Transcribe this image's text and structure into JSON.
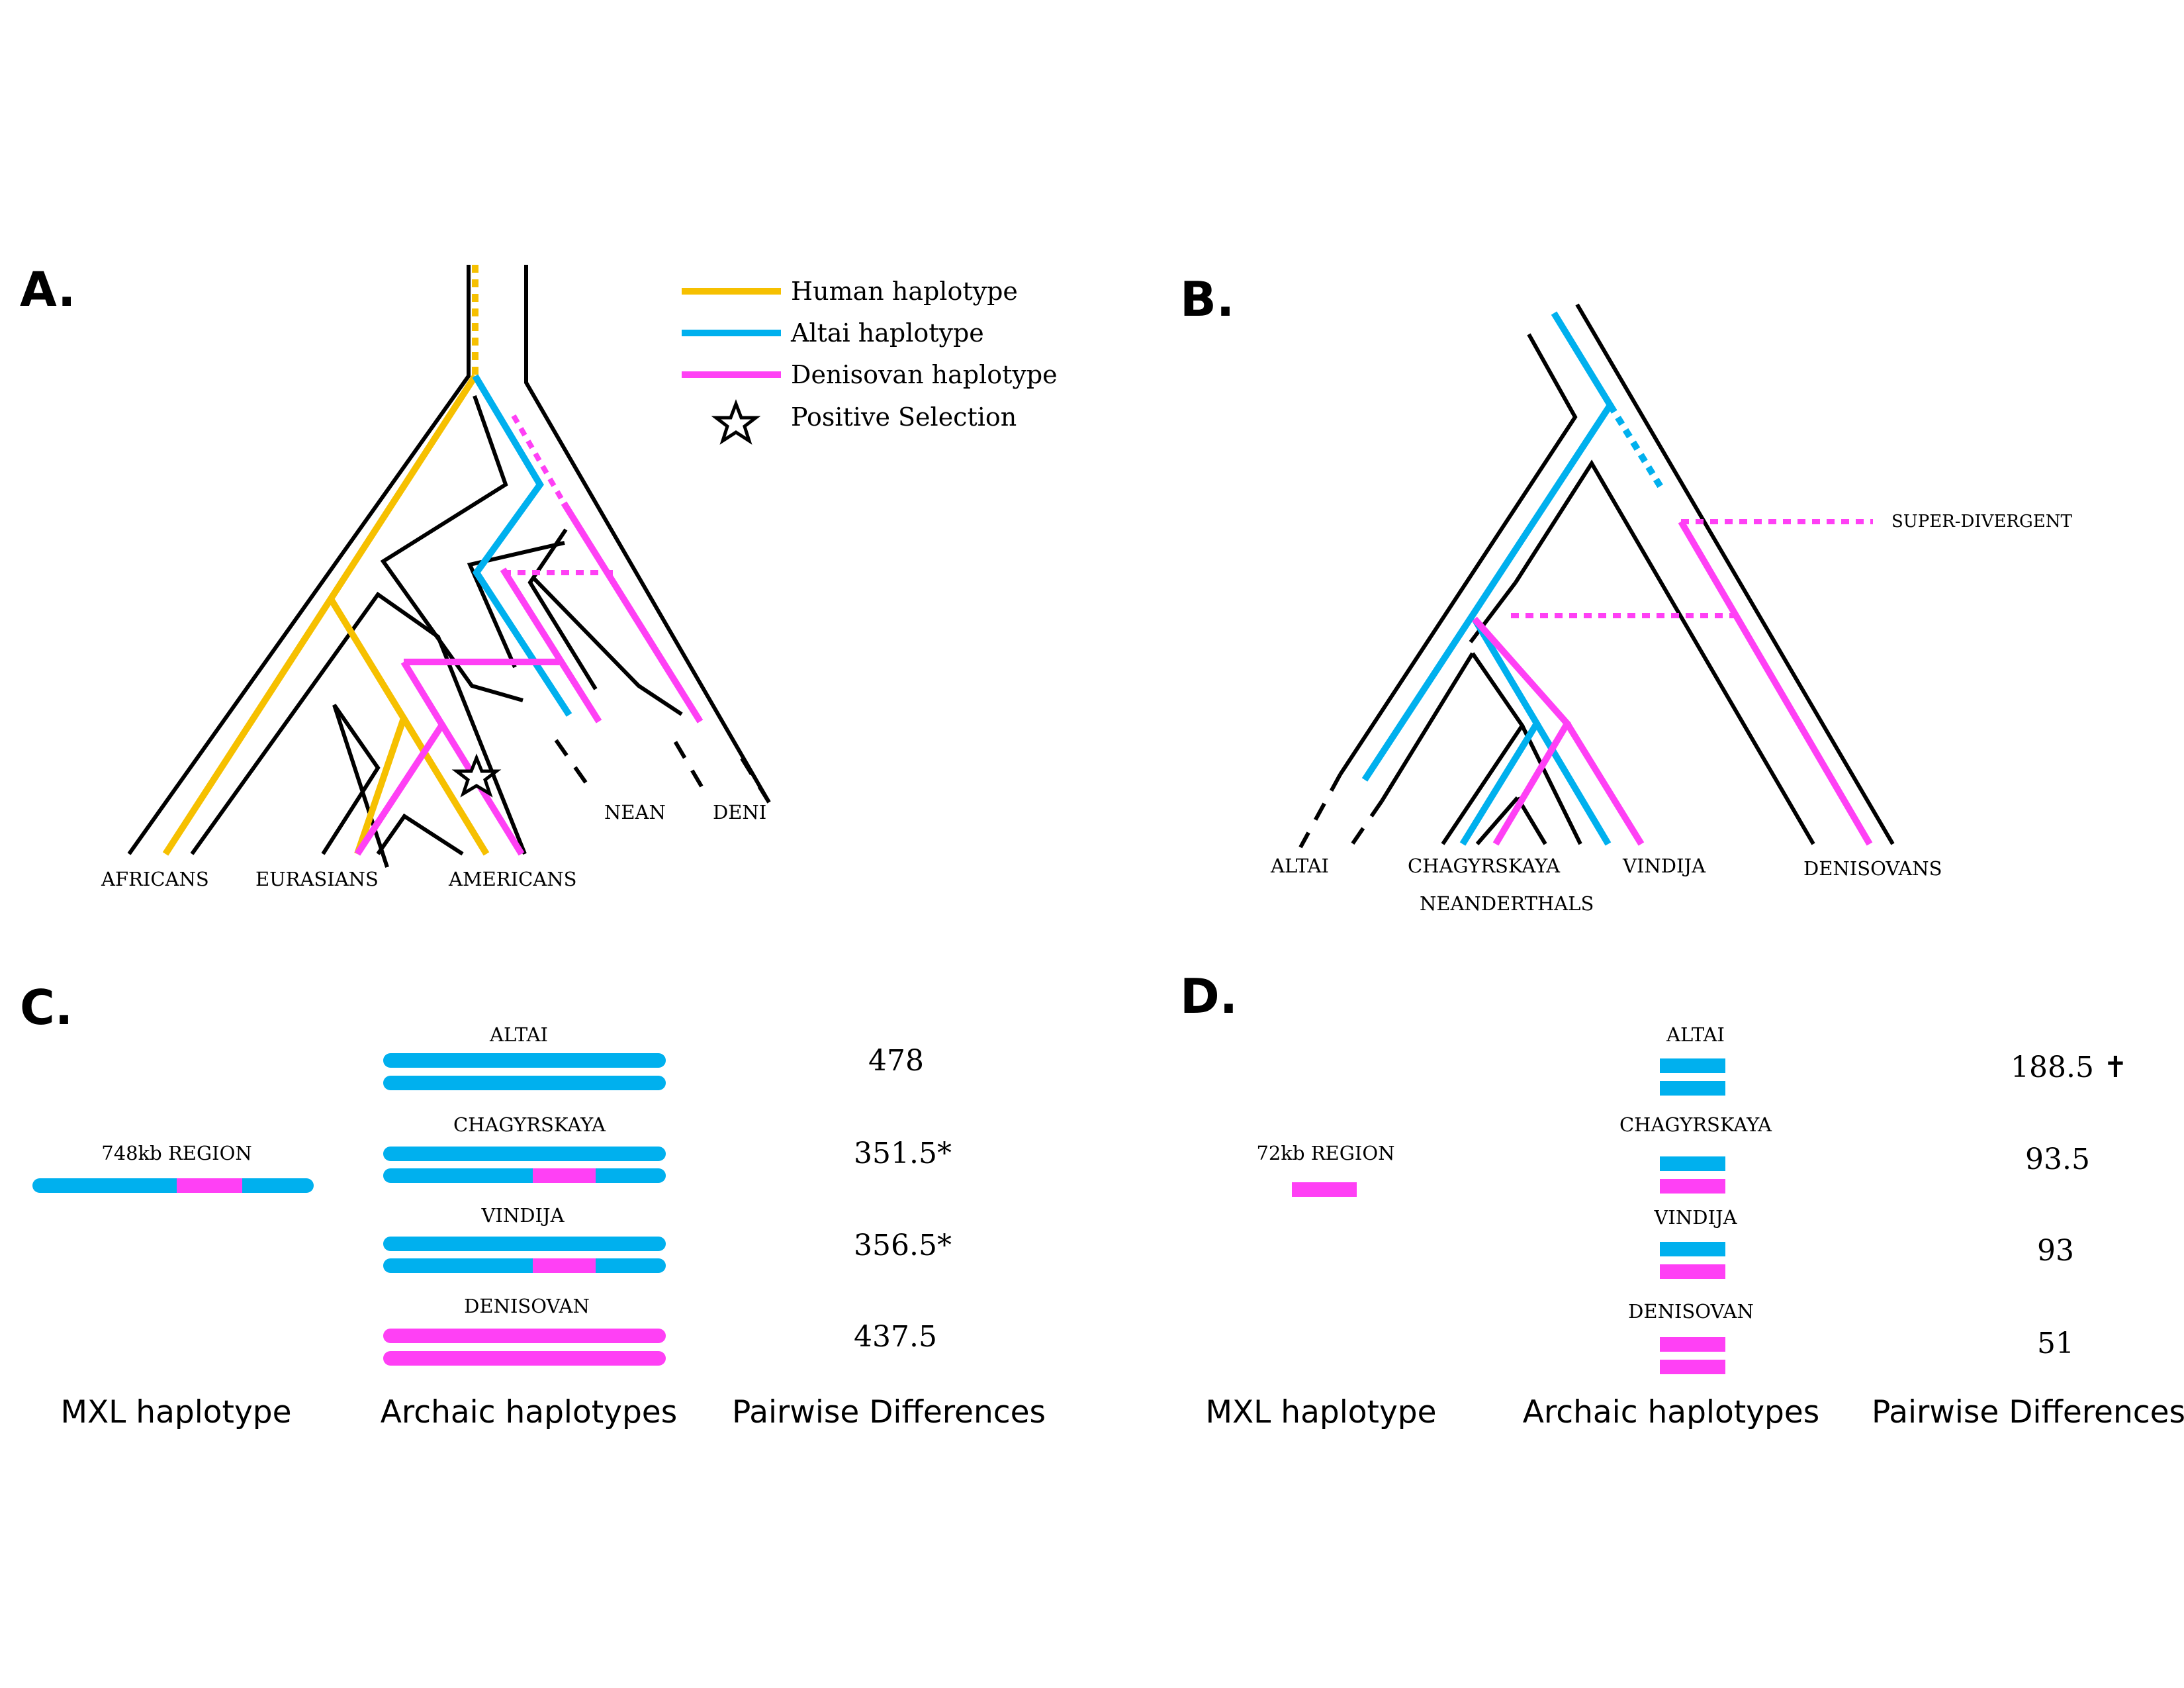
{
  "panels": {
    "a": "A.",
    "b": "B.",
    "c": "C.",
    "d": "D."
  },
  "legend": {
    "human": "Human haplotype",
    "altai": "Altai haplotype",
    "denisovan": "Denisovan haplotype",
    "selection": "Positive Selection"
  },
  "tree_a": {
    "africans": "AFRICANS",
    "eurasians": "EURASIANS",
    "americans": "AMERICANS",
    "nean": "NEAN",
    "deni": "DENI"
  },
  "tree_b": {
    "altai": "ALTAI",
    "chagyrskaya": "CHAGYRSKAYA",
    "vindija": "VINDIJA",
    "denisovans": "DENISOVANS",
    "neanderthals": "NEANDERTHALS",
    "super_divergent": "SUPER-DIVERGENT"
  },
  "panel_c": {
    "region": "748kb REGION",
    "archaics": [
      {
        "name": "ALTAI",
        "value": "478"
      },
      {
        "name": "CHAGYRSKAYA",
        "value": "351.5*"
      },
      {
        "name": "VINDIJA",
        "value": "356.5*"
      },
      {
        "name": "DENISOVAN",
        "value": "437.5"
      }
    ],
    "headers": [
      "MXL haplotype",
      "Archaic haplotypes",
      "Pairwise Differences"
    ]
  },
  "panel_d": {
    "region": "72kb REGION",
    "archaics": [
      {
        "name": "ALTAI",
        "value": "188.5 ✝"
      },
      {
        "name": "CHAGYRSKAYA",
        "value": "93.5"
      },
      {
        "name": "VINDIJA",
        "value": "93"
      },
      {
        "name": "DENISOVAN",
        "value": "51"
      }
    ],
    "headers": [
      "MXL haplotype",
      "Archaic haplotypes",
      "Pairwise Differences"
    ]
  },
  "colors": {
    "human": "#f6c000",
    "altai": "#00b0ee",
    "denisovan": "#ff40f5"
  },
  "icons": {
    "selection": "star-icon"
  }
}
